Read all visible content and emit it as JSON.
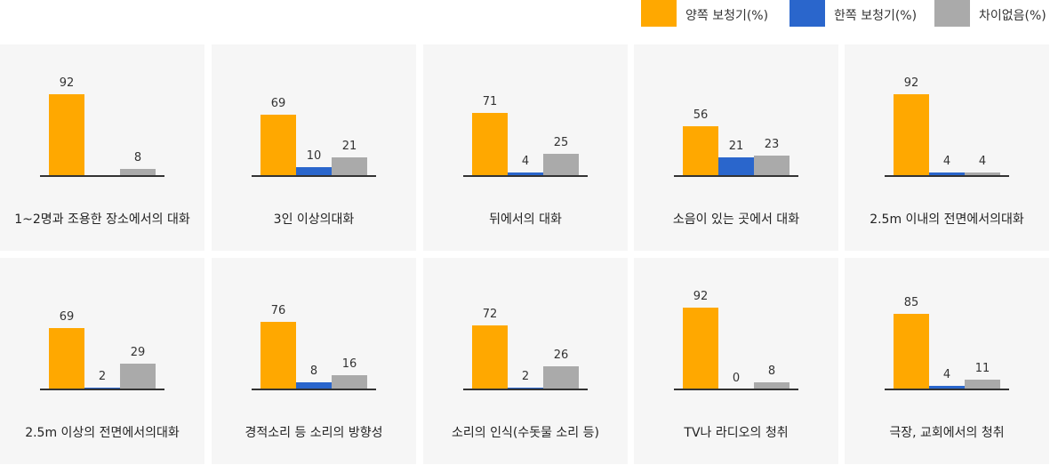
{
  "legend": [
    {
      "label": "양쪽 보청기(%)",
      "color": "#FFA800"
    },
    {
      "label": "한쪽 보청기(%)",
      "color": "#2A66CC"
    },
    {
      "label": "차이없음(%)",
      "color": "#AAAAAA"
    }
  ],
  "chart_data": [
    {
      "type": "bar",
      "title": "1~2명과 조용한 장소에서의 대화",
      "values": [
        92,
        null,
        8
      ]
    },
    {
      "type": "bar",
      "title": "3인 이상의대화",
      "values": [
        69,
        10,
        21
      ]
    },
    {
      "type": "bar",
      "title": "뒤에서의 대화",
      "values": [
        71,
        4,
        25
      ]
    },
    {
      "type": "bar",
      "title": "소음이 있는 곳에서 대화",
      "values": [
        56,
        21,
        23
      ]
    },
    {
      "type": "bar",
      "title": "2.5m 이내의 전면에서의대화",
      "values": [
        92,
        4,
        4
      ]
    },
    {
      "type": "bar",
      "title": "2.5m 이상의 전면에서의대화",
      "values": [
        69,
        2,
        29
      ]
    },
    {
      "type": "bar",
      "title": "경적소리 등 소리의 방향성",
      "values": [
        76,
        8,
        16
      ]
    },
    {
      "type": "bar",
      "title": "소리의 인식(수돗물 소리 등)",
      "values": [
        72,
        2,
        26
      ]
    },
    {
      "type": "bar",
      "title": "TV나 라디오의 청취",
      "values": [
        92,
        0,
        8
      ]
    },
    {
      "type": "bar",
      "title": "극장, 교회에서의 청취",
      "values": [
        85,
        4,
        11
      ]
    }
  ]
}
